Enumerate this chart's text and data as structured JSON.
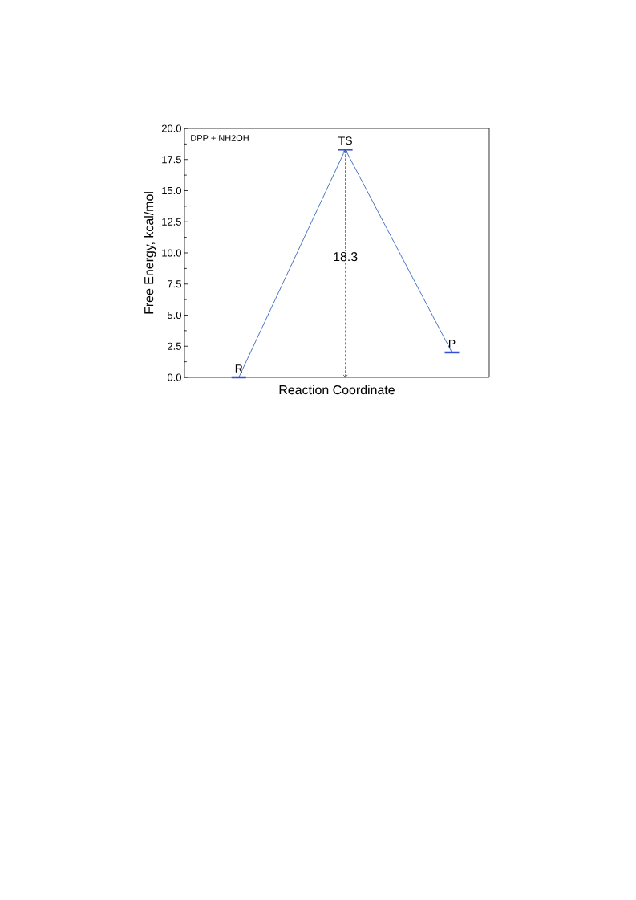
{
  "chart_data": {
    "type": "line",
    "title": "DPP + NH2OH",
    "xlabel": "Reaction Coordinate",
    "ylabel": "Free Energy, kcal/mol",
    "categories": [
      null,
      null,
      null
    ],
    "series": [
      {
        "color": "#4a74c4",
        "values": [
          0,
          18.3,
          2.0
        ]
      }
    ],
    "ylim": [
      0,
      20
    ],
    "yticks": [
      {
        "value": 0,
        "label": "0.0"
      },
      {
        "value": 2.5,
        "label": "2.5"
      },
      {
        "value": 5,
        "label": "5.0"
      },
      {
        "value": 7.5,
        "label": "7.5"
      },
      {
        "value": 10,
        "label": "10.0"
      },
      {
        "value": 12.5,
        "label": "12.5"
      },
      {
        "value": 15,
        "label": "15.0"
      },
      {
        "value": 17.5,
        "label": "17.5"
      },
      {
        "value": 20,
        "label": "20.0"
      }
    ],
    "annotations": [
      {
        "text": "R",
        "y": 0
      },
      {
        "text": "TS",
        "y": 18.3
      },
      {
        "text": "P",
        "y": 2.0
      },
      {
        "text": "18.3",
        "y": 9.7
      }
    ],
    "tick_labels": "y",
    "grid": false
  }
}
